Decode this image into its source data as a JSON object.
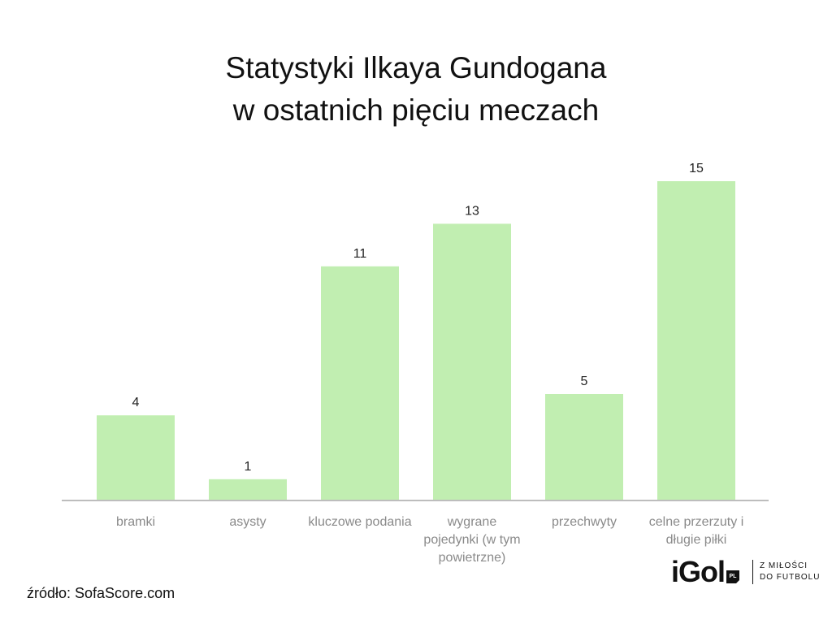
{
  "title_lines": [
    "Statystyki Ilkaya Gundogana",
    "w ostatnich pięciu meczach"
  ],
  "source": "źródło: SofaScore.com",
  "logo": {
    "word": "iGol",
    "badge": "PL",
    "tagline": [
      "Z MIŁOŚCI",
      "DO FUTBOLU"
    ]
  },
  "colors": {
    "bar": "#c1eeb1",
    "axis": "#bdbdbd",
    "category_text": "#8a8a8a",
    "value_text": "#222222"
  },
  "chart_data": {
    "type": "bar",
    "title": "Statystyki Ilkaya Gundogana w ostatnich pięciu meczach",
    "categories": [
      [
        "bramki"
      ],
      [
        "asysty"
      ],
      [
        "kluczowe podania"
      ],
      [
        "wygrane",
        "pojedynki (w tym",
        "powietrzne)"
      ],
      [
        "przechwyty"
      ],
      [
        "celne przerzuty i",
        "długie piłki"
      ]
    ],
    "values": [
      4,
      1,
      11,
      13,
      5,
      15
    ],
    "xlabel": "",
    "ylabel": "",
    "ylim": [
      0,
      15
    ],
    "grid": false,
    "legend": "none",
    "data_labels": true
  }
}
